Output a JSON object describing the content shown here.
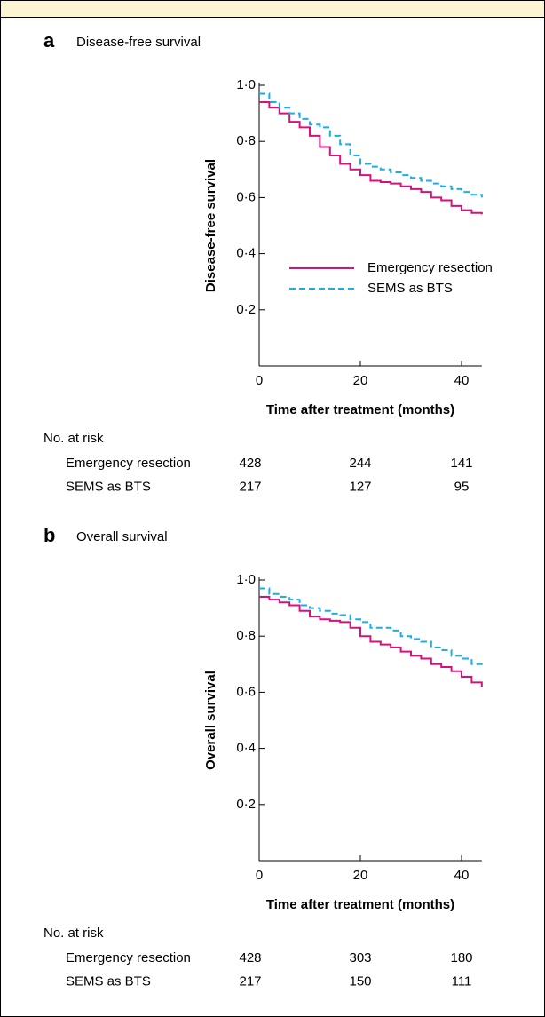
{
  "chart_data": [
    {
      "type": "line",
      "panel": "a",
      "title": "Disease-free survival",
      "xlabel": "Time after treatment (months)",
      "ylabel": "Disease-free survival",
      "x": [
        0,
        2,
        4,
        6,
        8,
        10,
        12,
        14,
        16,
        18,
        20,
        22,
        24,
        26,
        28,
        30,
        32,
        34,
        36,
        38,
        40,
        42,
        44
      ],
      "series": [
        {
          "name": "Emergency resection",
          "color": "#d4127e",
          "dash": false,
          "values": [
            0.94,
            0.92,
            0.9,
            0.87,
            0.85,
            0.82,
            0.78,
            0.75,
            0.72,
            0.7,
            0.68,
            0.66,
            0.655,
            0.65,
            0.64,
            0.63,
            0.62,
            0.6,
            0.59,
            0.57,
            0.555,
            0.545,
            0.54
          ]
        },
        {
          "name": "SEMS as BTS",
          "color": "#1aaee6",
          "dash": true,
          "values": [
            0.97,
            0.94,
            0.92,
            0.9,
            0.88,
            0.86,
            0.85,
            0.82,
            0.79,
            0.75,
            0.72,
            0.71,
            0.7,
            0.69,
            0.68,
            0.67,
            0.66,
            0.65,
            0.64,
            0.63,
            0.62,
            0.61,
            0.6
          ]
        }
      ],
      "xlim": [
        0,
        44
      ],
      "xticks": [
        0,
        20,
        40
      ],
      "ylim": [
        0,
        1
      ],
      "yticks": [
        {
          "value": 0.2,
          "label": "0·2"
        },
        {
          "value": 0.4,
          "label": "0·4"
        },
        {
          "value": 0.6,
          "label": "0·6"
        },
        {
          "value": 0.8,
          "label": "0·8"
        },
        {
          "value": 1,
          "label": "1·0"
        }
      ],
      "legend": "right",
      "risk_table": {
        "title": "No. at risk",
        "rows": [
          {
            "label": "Emergency resection",
            "values": [
              428,
              244,
              141
            ]
          },
          {
            "label": "SEMS as BTS",
            "values": [
              217,
              127,
              95
            ]
          }
        ]
      }
    },
    {
      "type": "line",
      "panel": "b",
      "title": "Overall survival",
      "xlabel": "Time after treatment (months)",
      "ylabel": "Overall survival",
      "x": [
        0,
        2,
        4,
        6,
        8,
        10,
        12,
        14,
        16,
        18,
        20,
        22,
        24,
        26,
        28,
        30,
        32,
        34,
        36,
        38,
        40,
        42,
        44
      ],
      "series": [
        {
          "color": "#d4127e",
          "dash": false,
          "values": [
            0.94,
            0.93,
            0.92,
            0.91,
            0.89,
            0.87,
            0.86,
            0.855,
            0.85,
            0.83,
            0.8,
            0.78,
            0.77,
            0.76,
            0.745,
            0.73,
            0.72,
            0.7,
            0.69,
            0.675,
            0.655,
            0.635,
            0.62
          ]
        },
        {
          "color": "#1aaee6",
          "dash": true,
          "values": [
            0.97,
            0.95,
            0.94,
            0.93,
            0.91,
            0.9,
            0.89,
            0.88,
            0.875,
            0.86,
            0.85,
            0.83,
            0.83,
            0.82,
            0.8,
            0.79,
            0.78,
            0.76,
            0.75,
            0.73,
            0.72,
            0.7,
            0.69
          ]
        }
      ],
      "xlim": [
        0,
        44
      ],
      "xticks": [
        0,
        20,
        40
      ],
      "ylim": [
        0,
        1
      ],
      "yticks": [
        {
          "value": 0.2,
          "label": "0·2"
        },
        {
          "value": 0.4,
          "label": "0·4"
        },
        {
          "value": 0.6,
          "label": "0·6"
        },
        {
          "value": 0.8,
          "label": "0·8"
        },
        {
          "value": 1,
          "label": "1·0"
        }
      ],
      "risk_table": {
        "title": "No. at risk",
        "rows": [
          {
            "label": "Emergency resection",
            "values": [
              428,
              303,
              180
            ]
          },
          {
            "label": "SEMS as BTS",
            "values": [
              217,
              150,
              111
            ]
          }
        ]
      }
    }
  ]
}
